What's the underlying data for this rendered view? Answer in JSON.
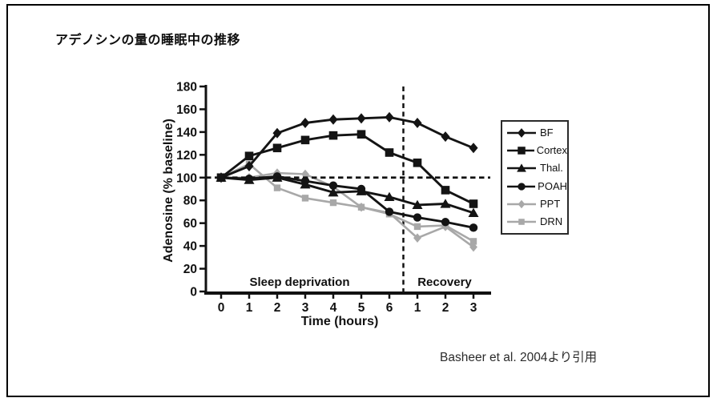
{
  "slide": {
    "title": "アデノシンの量の睡眠中の推移",
    "citation": "Basheer et al. 2004より引用"
  },
  "chart_data": {
    "type": "line",
    "title": "",
    "xlabel": "Time (hours)",
    "ylabel": "Adenosine (% baseline)",
    "ylim": [
      0,
      180
    ],
    "y_ticks": [
      0,
      20,
      40,
      60,
      80,
      100,
      120,
      140,
      160,
      180
    ],
    "x_tick_labels": [
      "0",
      "1",
      "2",
      "3",
      "4",
      "5",
      "6",
      "1",
      "2",
      "3"
    ],
    "x_phases": [
      {
        "label": "Sleep deprivation",
        "span": [
          0,
          6
        ]
      },
      {
        "label": "Recovery",
        "span": [
          7,
          9
        ]
      }
    ],
    "baseline": 100,
    "grid": false,
    "legend_position": "right",
    "colors": {
      "black_series": "#141414",
      "gray_series": "#a8a8a8"
    },
    "series": [
      {
        "name": "BF",
        "marker": "diamond",
        "color": "#141414",
        "values": [
          100,
          110,
          139,
          148,
          151,
          152,
          153,
          148,
          136,
          126
        ]
      },
      {
        "name": "Cortex",
        "marker": "square",
        "color": "#141414",
        "values": [
          100,
          119,
          126,
          133,
          137,
          138,
          122,
          113,
          89,
          77
        ]
      },
      {
        "name": "Thal.",
        "marker": "triangle",
        "color": "#141414",
        "values": [
          100,
          98,
          100,
          94,
          87,
          88,
          83,
          76,
          77,
          69
        ]
      },
      {
        "name": "POAH",
        "marker": "circle",
        "color": "#141414",
        "values": [
          100,
          99,
          101,
          97,
          93,
          90,
          70,
          65,
          61,
          56
        ]
      },
      {
        "name": "PPT",
        "marker": "diamond",
        "color": "#a8a8a8",
        "values": [
          100,
          100,
          104,
          103,
          92,
          74,
          69,
          47,
          57,
          39
        ]
      },
      {
        "name": "DRN",
        "marker": "square",
        "color": "#a8a8a8",
        "values": [
          100,
          112,
          91,
          82,
          78,
          74,
          68,
          57,
          58,
          44
        ]
      }
    ]
  }
}
